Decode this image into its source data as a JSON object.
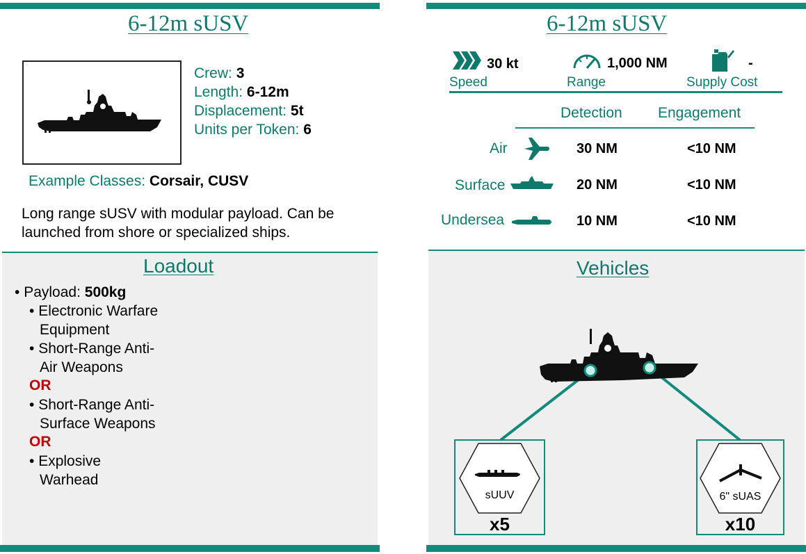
{
  "left_card": {
    "title": "6-12m sUSV",
    "stats": [
      {
        "label": "Crew:",
        "value": "3"
      },
      {
        "label": "Length:",
        "value": "6-12m"
      },
      {
        "label": "Displacement:",
        "value": "5t"
      },
      {
        "label": "Units per Token:",
        "value": "6"
      }
    ],
    "example_classes": {
      "label": "Example Classes:",
      "value": "Corsair, CUSV"
    },
    "description_line1": "Long range sUSV with modular payload. Can be",
    "description_line2": "launched from shore or specialized ships.",
    "loadout": {
      "title": "Loadout",
      "payload_label": "Payload:",
      "payload_value": "500kg",
      "items": [
        {
          "line1": "Electronic Warfare",
          "line2": "Equipment"
        },
        {
          "line1": "Short-Range Anti-",
          "line2": "Air Weapons"
        },
        {
          "line1": "Short-Range Anti-",
          "line2": "Surface Weapons"
        },
        {
          "line1": "Explosive",
          "line2": "Warhead"
        }
      ],
      "or_label": "OR"
    },
    "ship_icon": "ship-silhouette-icon"
  },
  "right_card": {
    "title": "6-12m sUSV",
    "speed": {
      "value": "30 kt",
      "label": "Speed",
      "icon": "chevrons-icon"
    },
    "range": {
      "value": "1,000 NM",
      "label": "Range",
      "icon": "gauge-icon"
    },
    "supply": {
      "value": "-",
      "label": "Supply Cost",
      "icon": "fuel-can-icon"
    },
    "table": {
      "headers": [
        "Detection",
        "Engagement"
      ],
      "rows": [
        {
          "label": "Air",
          "icon": "airplane-icon",
          "detection": "30 NM",
          "engagement": "<10 NM"
        },
        {
          "label": "Surface",
          "icon": "ship-icon",
          "detection": "20 NM",
          "engagement": "<10 NM"
        },
        {
          "label": "Undersea",
          "icon": "submarine-icon",
          "detection": "10 NM",
          "engagement": "<10 NM"
        }
      ]
    },
    "vehicles": {
      "title": "Vehicles",
      "items": [
        {
          "name": "sUUV",
          "count": "x5",
          "icon": "submarine-icon"
        },
        {
          "name": "6\" sUAS",
          "count": "x10",
          "icon": "drone-icon"
        }
      ]
    }
  },
  "colors": {
    "accent": "#128a7c",
    "text_accent": "#0f7a6c",
    "or_red": "#c00000",
    "panel_gray": "#efefef"
  }
}
